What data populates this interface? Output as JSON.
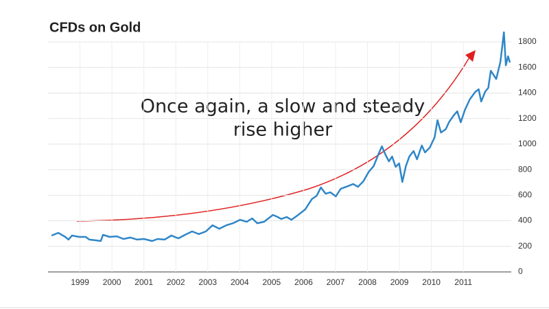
{
  "chart_data": {
    "type": "line",
    "title": "CFDs on Gold",
    "annotation": [
      "Once again, a slow and steady",
      "rise higher"
    ],
    "x": [
      1998.11,
      1998.32,
      1998.54,
      1998.64,
      1998.75,
      1998.97,
      1999.18,
      1999.29,
      1999.5,
      1999.65,
      1999.72,
      1999.93,
      2000.15,
      2000.36,
      2000.58,
      2000.79,
      2001.0,
      2001.26,
      2001.43,
      2001.65,
      2001.86,
      2002.08,
      2002.29,
      2002.51,
      2002.72,
      2002.94,
      2003.15,
      2003.36,
      2003.58,
      2003.79,
      2004.01,
      2004.22,
      2004.39,
      2004.55,
      2004.76,
      2005.04,
      2005.19,
      2005.3,
      2005.47,
      2005.62,
      2005.83,
      2006.05,
      2006.26,
      2006.41,
      2006.54,
      2006.69,
      2006.84,
      2007.01,
      2007.16,
      2007.33,
      2007.55,
      2007.7,
      2007.87,
      2008.04,
      2008.19,
      2008.34,
      2008.45,
      2008.56,
      2008.67,
      2008.77,
      2008.88,
      2008.99,
      2009.09,
      2009.2,
      2009.31,
      2009.44,
      2009.55,
      2009.7,
      2009.8,
      2009.95,
      2010.1,
      2010.19,
      2010.3,
      2010.45,
      2010.55,
      2010.7,
      2010.81,
      2010.92,
      2011.05,
      2011.2,
      2011.37,
      2011.48,
      2011.56,
      2011.69,
      2011.78,
      2011.86,
      2012.03,
      2012.16,
      2012.27,
      2012.33,
      2012.4,
      2012.46
    ],
    "series": [
      {
        "name": "CFDs on Gold",
        "color": "#2e86c8",
        "values": [
          285,
          306,
          274,
          253,
          285,
          274,
          274,
          253,
          247,
          242,
          290,
          274,
          279,
          258,
          269,
          253,
          258,
          242,
          258,
          253,
          285,
          263,
          290,
          317,
          296,
          317,
          365,
          338,
          365,
          381,
          408,
          392,
          419,
          381,
          392,
          446,
          430,
          414,
          430,
          408,
          446,
          489,
          570,
          596,
          661,
          612,
          623,
          591,
          650,
          666,
          688,
          666,
          709,
          784,
          827,
          919,
          983,
          919,
          865,
          903,
          822,
          849,
          704,
          827,
          903,
          946,
          881,
          989,
          935,
          973,
          1053,
          1187,
          1091,
          1117,
          1171,
          1225,
          1257,
          1171,
          1268,
          1349,
          1408,
          1429,
          1333,
          1413,
          1440,
          1574,
          1510,
          1644,
          1875,
          1617,
          1687,
          1639
        ]
      }
    ],
    "xlim": [
      1998,
      2012.5
    ],
    "xticks": [
      1999,
      2000,
      2001,
      2002,
      2003,
      2004,
      2005,
      2006,
      2007,
      2008,
      2009,
      2010,
      2011
    ],
    "ylim": [
      0,
      1800
    ],
    "yticks": [
      0,
      200,
      400,
      600,
      800,
      1000,
      1200,
      1400,
      1600,
      1800
    ],
    "grid": true
  }
}
